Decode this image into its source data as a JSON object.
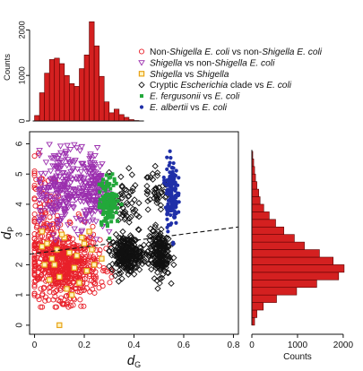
{
  "chart_data": [
    {
      "type": "scatter",
      "role": "main",
      "xlabel": "d",
      "xlabel_sub": "G",
      "ylabel": "d",
      "ylabel_sub": "P",
      "xlim": [
        -0.02,
        0.82
      ],
      "ylim": [
        -0.3,
        6.4
      ],
      "x_ticks": [
        "0",
        "0.2",
        "0.4",
        "0.6",
        "0.8"
      ],
      "x_tick_values": [
        0,
        0.2,
        0.4,
        0.6,
        0.8
      ],
      "y_ticks": [
        "0",
        "1",
        "2",
        "3",
        "4",
        "5",
        "6"
      ],
      "y_tick_values": [
        0,
        1,
        2,
        3,
        4,
        5,
        6
      ],
      "trend_line": {
        "x": [
          -0.02,
          0.82
        ],
        "y": [
          2.35,
          3.25
        ],
        "style": "dashed"
      },
      "legend_position": "top-right",
      "series": [
        {
          "name_parts": [
            [
              "Non-",
              "n"
            ],
            [
              "Shigella",
              "i"
            ],
            [
              " ",
              "n"
            ],
            [
              "E. coli",
              "i"
            ],
            [
              " vs non-",
              "n"
            ],
            [
              "Shigella",
              "i"
            ],
            [
              " ",
              "n"
            ],
            [
              "E. coli",
              "i"
            ]
          ],
          "marker": "circle",
          "color": "#e8202a",
          "clusters": [
            {
              "cx": 0.12,
              "cy": 2.0,
              "sx": 0.07,
              "sy": 0.55,
              "n": 650,
              "xmin": 0.0,
              "xmax": 0.31
            },
            {
              "cx": 0.03,
              "cy": 3.6,
              "sx": 0.03,
              "sy": 0.8,
              "n": 90,
              "xmin": 0.0,
              "xmax": 0.1
            }
          ]
        },
        {
          "name_parts": [
            [
              "Shigella",
              "i"
            ],
            [
              " vs non-",
              "n"
            ],
            [
              "Shigella",
              "i"
            ],
            [
              " ",
              "n"
            ],
            [
              "E. coli",
              "i"
            ]
          ],
          "marker": "triangle-down",
          "color": "#9b2fae",
          "clusters": [
            {
              "cx": 0.1,
              "cy": 4.5,
              "sx": 0.045,
              "sy": 0.7,
              "n": 220,
              "xmin": 0.02,
              "xmax": 0.2
            },
            {
              "cx": 0.24,
              "cy": 4.5,
              "sx": 0.03,
              "sy": 0.65,
              "n": 180,
              "xmin": 0.17,
              "xmax": 0.3
            }
          ]
        },
        {
          "name_parts": [
            [
              "Shigella",
              "i"
            ],
            [
              " vs ",
              "n"
            ],
            [
              "Shigella",
              "i"
            ]
          ],
          "marker": "square",
          "color": "#e8a317",
          "points": [
            [
              0.03,
              3.1
            ],
            [
              0.05,
              2.7
            ],
            [
              0.07,
              2.2
            ],
            [
              0.1,
              1.6
            ],
            [
              0.12,
              2.9
            ],
            [
              0.14,
              2.4
            ],
            [
              0.16,
              1.9
            ],
            [
              0.18,
              1.4
            ],
            [
              0.2,
              2.7
            ],
            [
              0.22,
              3.1
            ],
            [
              0.24,
              2.0
            ],
            [
              0.06,
              1.5
            ],
            [
              0.09,
              2.5
            ],
            [
              0.13,
              1.2
            ],
            [
              0.17,
              2.3
            ],
            [
              0.21,
              1.8
            ],
            [
              0.04,
              2.0
            ],
            [
              0.11,
              3.0
            ],
            [
              0.19,
              2.9
            ],
            [
              0.15,
              1.0
            ],
            [
              0.23,
              2.5
            ],
            [
              0.08,
              2.0
            ],
            [
              0.27,
              2.2
            ],
            [
              0.03,
              2.6
            ],
            [
              0.1,
              0.0
            ]
          ]
        },
        {
          "name_parts": [
            [
              "Cryptic ",
              "n"
            ],
            [
              "Escherichia",
              "i"
            ],
            [
              " clade vs ",
              "n"
            ],
            [
              "E. coli",
              "i"
            ]
          ],
          "marker": "diamond",
          "color": "#111111",
          "clusters": [
            {
              "cx": 0.37,
              "cy": 2.35,
              "sx": 0.03,
              "sy": 0.3,
              "n": 260,
              "xmin": 0.3,
              "xmax": 0.44
            },
            {
              "cx": 0.5,
              "cy": 2.4,
              "sx": 0.022,
              "sy": 0.4,
              "n": 200,
              "xmin": 0.45,
              "xmax": 0.56
            },
            {
              "cx": 0.36,
              "cy": 4.0,
              "sx": 0.03,
              "sy": 0.5,
              "n": 55,
              "xmin": 0.3,
              "xmax": 0.42
            },
            {
              "cx": 0.49,
              "cy": 4.5,
              "sx": 0.025,
              "sy": 0.35,
              "n": 40,
              "xmin": 0.44,
              "xmax": 0.56
            }
          ]
        },
        {
          "name_parts": [
            [
              "E. fergusonii",
              "i"
            ],
            [
              " vs ",
              "n"
            ],
            [
              "E. coli",
              "i"
            ]
          ],
          "marker": "square-filled",
          "color": "#22a83a",
          "clusters": [
            {
              "cx": 0.3,
              "cy": 4.1,
              "sx": 0.02,
              "sy": 0.4,
              "n": 130,
              "xmin": 0.26,
              "xmax": 0.35
            }
          ]
        },
        {
          "name_parts": [
            [
              "E. albertii",
              "i"
            ],
            [
              " vs ",
              "n"
            ],
            [
              "E. coli",
              "i"
            ]
          ],
          "marker": "dot",
          "color": "#1f2fa8",
          "clusters": [
            {
              "cx": 0.55,
              "cy": 4.4,
              "sx": 0.012,
              "sy": 0.55,
              "n": 160,
              "xmin": 0.52,
              "xmax": 0.59
            }
          ]
        }
      ]
    },
    {
      "type": "histogram",
      "role": "top-marginal",
      "orientation": "vertical",
      "ylabel": "Counts",
      "y_ticks": [
        "0",
        "1000",
        "2000"
      ],
      "y_tick_values": [
        0,
        1000,
        2000
      ],
      "ylim": [
        0,
        2500
      ],
      "bin_start": 0.0,
      "bin_width": 0.02,
      "counts": [
        120,
        620,
        1050,
        1350,
        1380,
        1260,
        1000,
        820,
        760,
        1150,
        1450,
        2180,
        1650,
        980,
        420,
        180,
        260,
        140,
        80,
        30,
        10
      ],
      "bar_color": "#d42020"
    },
    {
      "type": "histogram",
      "role": "right-marginal",
      "orientation": "horizontal",
      "xlabel": "Counts",
      "x_ticks": [
        "0",
        "1000",
        "2000"
      ],
      "x_tick_values": [
        0,
        1000,
        2000
      ],
      "xlim": [
        0,
        2100
      ],
      "bin_start": 0.0,
      "bin_width": 0.25,
      "counts": [
        60,
        110,
        250,
        540,
        980,
        1420,
        1900,
        2020,
        1780,
        1480,
        1150,
        930,
        700,
        520,
        380,
        260,
        180,
        150,
        110,
        80,
        60,
        40,
        20
      ],
      "bar_color": "#d42020"
    }
  ]
}
